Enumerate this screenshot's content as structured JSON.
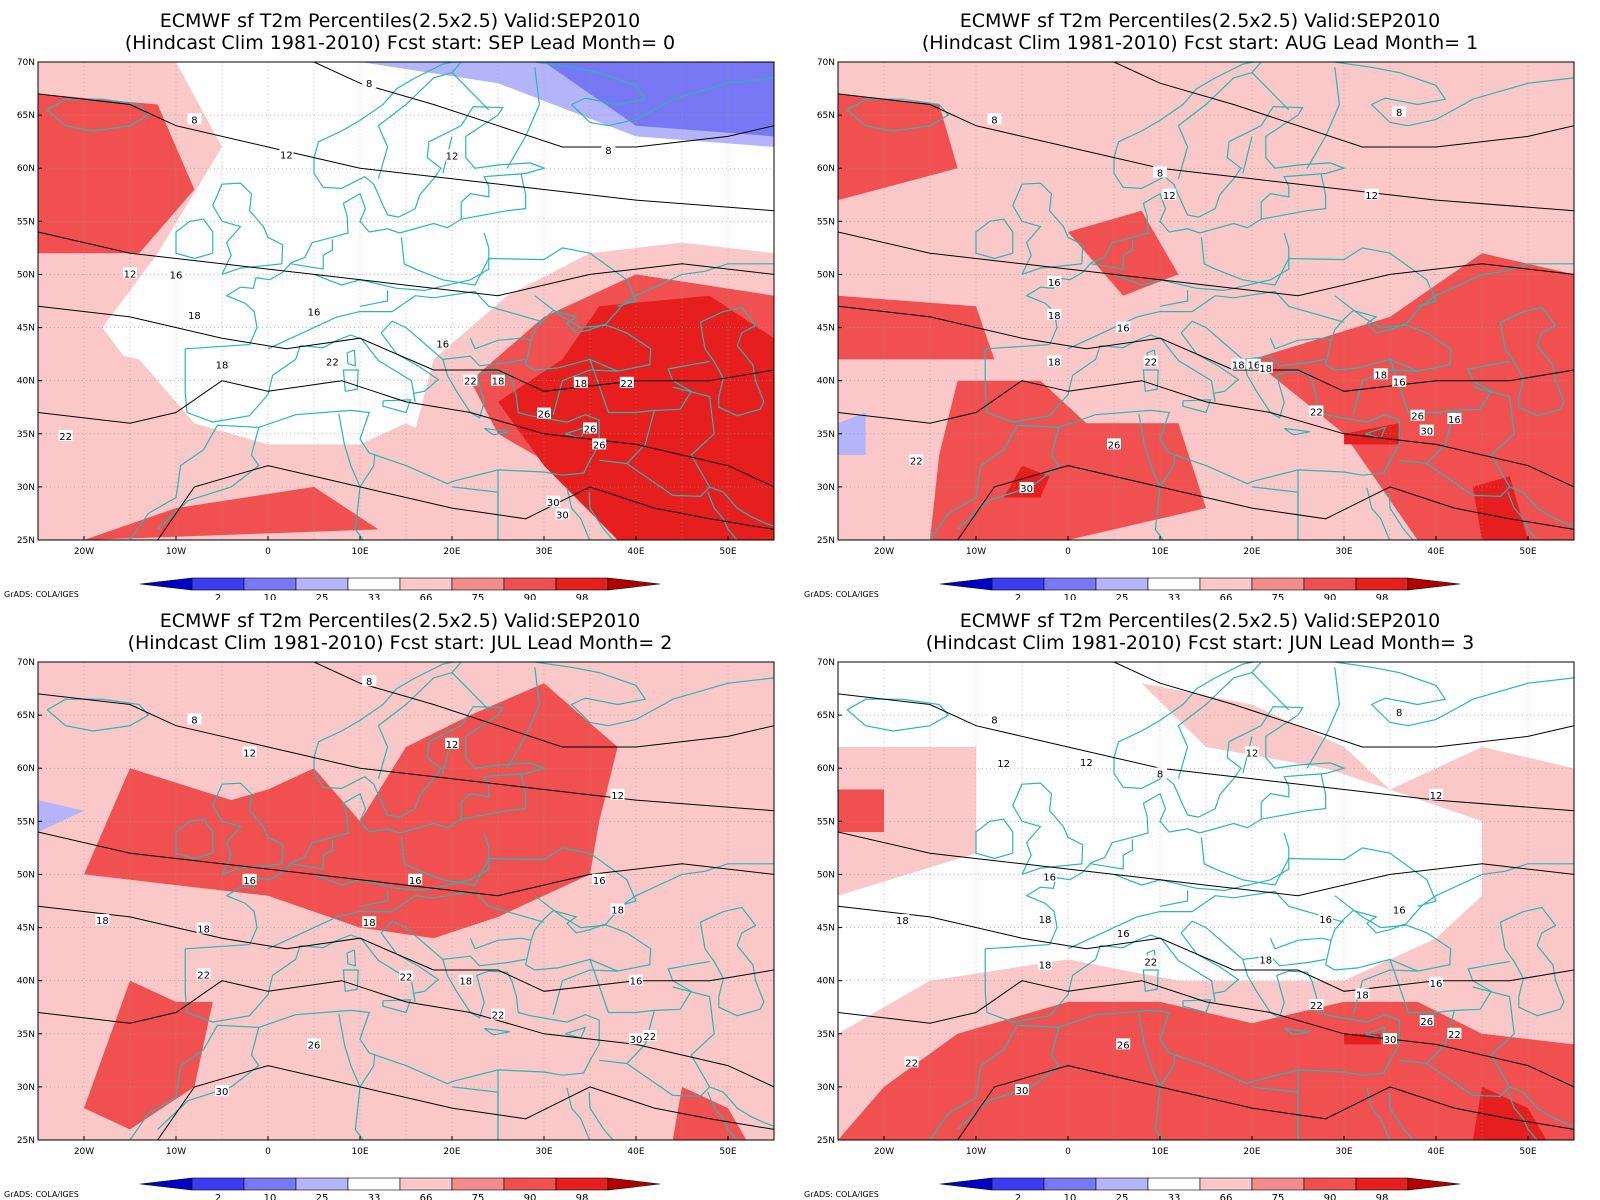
{
  "colorbar": {
    "ticks": [
      "2",
      "10",
      "25",
      "33",
      "66",
      "75",
      "90",
      "98"
    ],
    "colors": [
      "#0000c8",
      "#3c3cf0",
      "#7878f5",
      "#b4b4fa",
      "#ffffff",
      "#fac8c8",
      "#f58c8c",
      "#f05050",
      "#e61e1e",
      "#b40000"
    ]
  },
  "credit": "GrADS: COLA/IGES",
  "map": {
    "lat_labels": [
      "70N",
      "65N",
      "60N",
      "55N",
      "50N",
      "45N",
      "40N",
      "35N",
      "30N",
      "25N"
    ],
    "lon_labels": [
      "20W",
      "10W",
      "0",
      "10E",
      "20E",
      "30E",
      "40E",
      "50E"
    ],
    "coast_color": "#2ab6b6",
    "contour_color": "#000000"
  },
  "panels": [
    {
      "title_line1": "ECMWF sf T2m Percentiles(2.5x2.5) Valid:SEP2010",
      "title_line2": "(Hindcast Clim 1981-2010) Fcst start: SEP  Lead Month= 0",
      "shading": "lead0",
      "contour_labels": [
        "8",
        "8",
        "8",
        "12",
        "12",
        "12",
        "16",
        "16",
        "16",
        "18",
        "18",
        "18",
        "18",
        "22",
        "22",
        "22",
        "22",
        "26",
        "26",
        "26",
        "30",
        "30"
      ]
    },
    {
      "title_line1": "ECMWF sf T2m Percentiles(2.5x2.5) Valid:SEP2010",
      "title_line2": "(Hindcast Clim 1981-2010) Fcst start: AUG  Lead Month= 1",
      "shading": "lead1",
      "contour_labels": [
        "8",
        "8",
        "8",
        "12",
        "12",
        "16",
        "16",
        "16",
        "16",
        "18",
        "18",
        "18",
        "18",
        "18",
        "22",
        "22",
        "22",
        "26",
        "26",
        "30",
        "30",
        "16"
      ]
    },
    {
      "title_line1": "ECMWF sf T2m Percentiles(2.5x2.5) Valid:SEP2010",
      "title_line2": "(Hindcast Clim 1981-2010) Fcst start: JUL  Lead Month= 2",
      "shading": "lead2",
      "contour_labels": [
        "8",
        "8",
        "12",
        "12",
        "12",
        "16",
        "16",
        "16",
        "18",
        "18",
        "18",
        "18",
        "18",
        "16",
        "22",
        "22",
        "22",
        "26",
        "30",
        "30",
        "22"
      ]
    },
    {
      "title_line1": "ECMWF sf T2m Percentiles(2.5x2.5) Valid:SEP2010",
      "title_line2": "(Hindcast Clim 1981-2010) Fcst start: JUN  Lead Month= 3",
      "shading": "lead3",
      "contour_labels": [
        "8",
        "8",
        "8",
        "12",
        "12",
        "12",
        "12",
        "16",
        "16",
        "16",
        "16",
        "18",
        "18",
        "18",
        "18",
        "18",
        "16",
        "22",
        "22",
        "22",
        "26",
        "26",
        "30",
        "30",
        "22"
      ]
    }
  ]
}
